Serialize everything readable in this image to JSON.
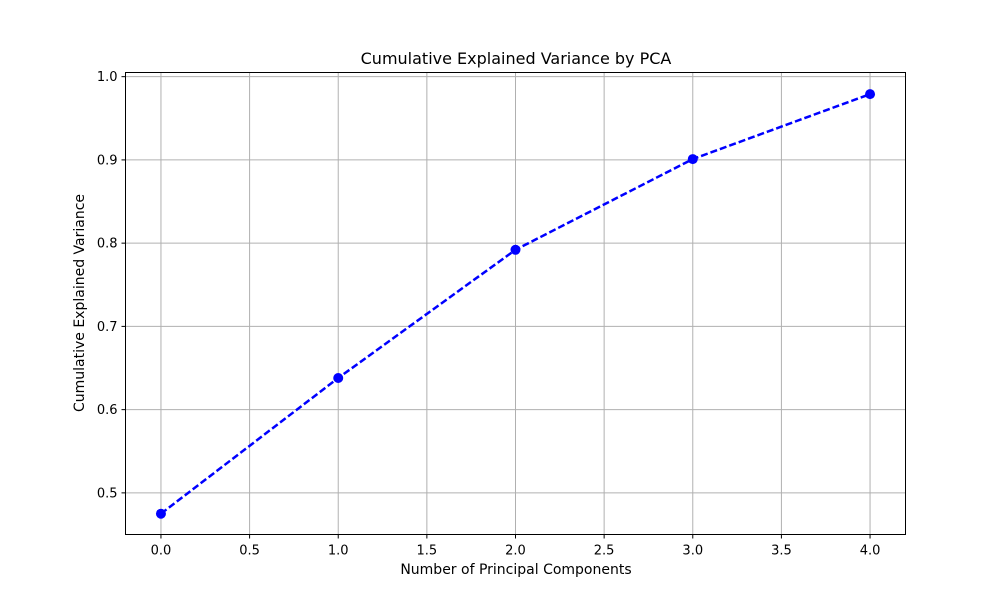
{
  "chart_data": {
    "type": "line",
    "title": "Cumulative Explained Variance by PCA",
    "xlabel": "Number of Principal Components",
    "ylabel": "Cumulative Explained Variance",
    "xlim": [
      -0.2,
      4.2
    ],
    "ylim": [
      0.45,
      1.005
    ],
    "xticks": [
      0.0,
      0.5,
      1.0,
      1.5,
      2.0,
      2.5,
      3.0,
      3.5,
      4.0
    ],
    "xtick_labels": [
      "0.0",
      "0.5",
      "1.0",
      "1.5",
      "2.0",
      "2.5",
      "3.0",
      "3.5",
      "4.0"
    ],
    "yticks": [
      0.5,
      0.6,
      0.7,
      0.8,
      0.9,
      1.0
    ],
    "ytick_labels": [
      "0.5",
      "0.6",
      "0.7",
      "0.8",
      "0.9",
      "1.0"
    ],
    "grid": true,
    "series": [
      {
        "x": [
          0,
          1,
          2,
          3,
          4
        ],
        "y": [
          0.475,
          0.638,
          0.792,
          0.901,
          0.979
        ],
        "color": "#0000ff",
        "line_style": "dashed",
        "marker": "circle"
      }
    ]
  }
}
